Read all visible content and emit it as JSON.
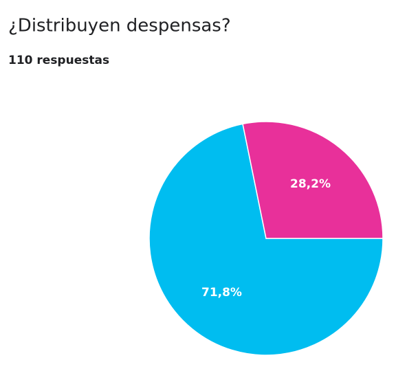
{
  "chart_data": {
    "type": "pie",
    "title": "¿Distribuyen despensas?",
    "subtitle": "110 respuestas",
    "categories": [
      null,
      null
    ],
    "values": [
      71.8,
      28.2
    ],
    "value_labels": [
      "71,8%",
      "28,2%"
    ],
    "colors": [
      "#00bdf0",
      "#e8309a"
    ]
  }
}
